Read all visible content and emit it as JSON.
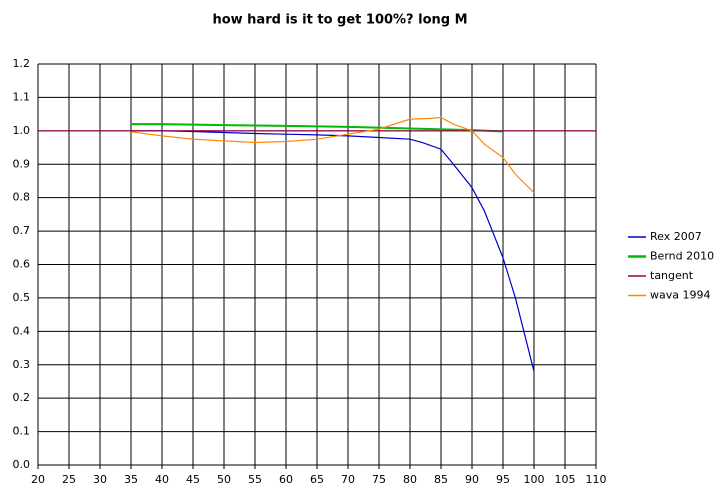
{
  "chart_data": {
    "type": "line",
    "title": "how hard is it to get 100%? long M",
    "xlim": [
      20,
      110
    ],
    "xticks": [
      20,
      25,
      30,
      35,
      40,
      45,
      50,
      55,
      60,
      65,
      70,
      75,
      80,
      85,
      90,
      95,
      100,
      105,
      110
    ],
    "ylim": [
      0,
      1.2
    ],
    "yticks": [
      {
        "value": 0,
        "label": "0.0"
      },
      0.1,
      0.2,
      0.3,
      0.4,
      0.5,
      0.6,
      0.7,
      0.8,
      0.9,
      {
        "value": 1,
        "label": "1.0"
      },
      1.1,
      1.2
    ],
    "grid": true,
    "legend": "right",
    "series": [
      {
        "name": "Rex 2007",
        "color": "#0000cc",
        "x": [
          35,
          40,
          45,
          50,
          55,
          60,
          65,
          70,
          75,
          80,
          82,
          85,
          87,
          90,
          92,
          95,
          97,
          100
        ],
        "values": [
          1.0,
          1.0,
          0.998,
          0.995,
          0.992,
          0.99,
          0.988,
          0.985,
          0.98,
          0.975,
          0.965,
          0.945,
          0.9,
          0.83,
          0.76,
          0.62,
          0.5,
          0.28
        ]
      },
      {
        "name": "Bernd 2010",
        "color": "#00bb00",
        "x": [
          35,
          40,
          50,
          60,
          70,
          80,
          90,
          95
        ],
        "values": [
          1.02,
          1.02,
          1.017,
          1.015,
          1.012,
          1.007,
          1.002,
          0.998
        ]
      },
      {
        "name": "tangent",
        "color": "#990044",
        "x": [
          20,
          110
        ],
        "values": [
          1.0,
          1.0
        ]
      },
      {
        "name": "wava 1994",
        "color": "#ff8800",
        "x": [
          35,
          40,
          45,
          50,
          55,
          60,
          65,
          70,
          75,
          80,
          83,
          85,
          87,
          90,
          92,
          95,
          97,
          100
        ],
        "values": [
          0.997,
          0.985,
          0.975,
          0.97,
          0.965,
          0.968,
          0.975,
          0.99,
          1.005,
          1.035,
          1.037,
          1.04,
          1.02,
          1.0,
          0.96,
          0.92,
          0.87,
          0.815
        ]
      }
    ]
  }
}
